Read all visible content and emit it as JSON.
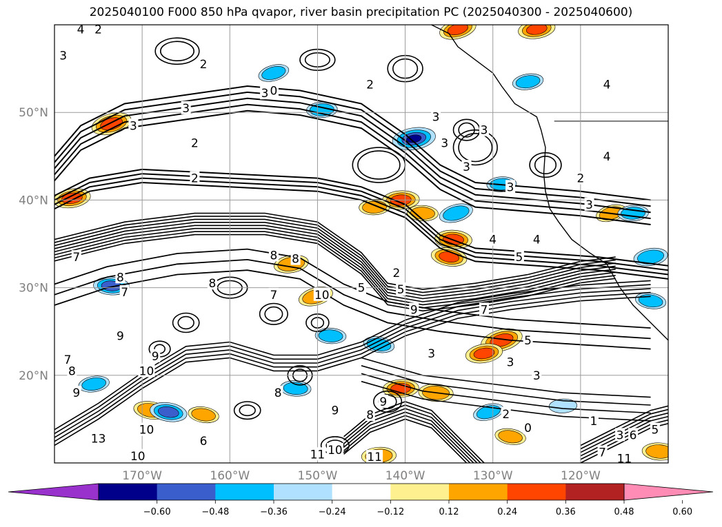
{
  "chart_data": {
    "type": "heatmap",
    "title": "2025040100 F000 850 hPa qvapor, river basin precipitation PC (2025040300 - 2025040600)",
    "map": {
      "lat_ticks": [
        "50°N",
        "40°N",
        "30°N",
        "20°N"
      ],
      "lat_values": [
        50,
        40,
        30,
        20
      ],
      "lon_ticks": [
        "170°W",
        "160°W",
        "150°W",
        "140°W",
        "130°W",
        "120°W"
      ],
      "lon_values": [
        -170,
        -160,
        -150,
        -140,
        -130,
        -120
      ],
      "lon_range": [
        -180,
        -110
      ],
      "lat_range": [
        10,
        60
      ],
      "grid": true,
      "contour_labels": [
        {
          "text": "4",
          "lon": -177,
          "lat": 59.5
        },
        {
          "text": "2",
          "lon": -175,
          "lat": 59.5
        },
        {
          "text": "3",
          "lon": -179,
          "lat": 56.5
        },
        {
          "text": "2",
          "lon": -163,
          "lat": 55.5
        },
        {
          "text": "3",
          "lon": -156,
          "lat": 52.2
        },
        {
          "text": "0",
          "lon": -155,
          "lat": 52.5
        },
        {
          "text": "3",
          "lon": -165,
          "lat": 50.5
        },
        {
          "text": "3",
          "lon": -171,
          "lat": 48.5
        },
        {
          "text": "2",
          "lon": -164,
          "lat": 46.5
        },
        {
          "text": "2",
          "lon": -164,
          "lat": 42.5
        },
        {
          "text": "2",
          "lon": -144,
          "lat": 53.2
        },
        {
          "text": "3",
          "lon": -136.5,
          "lat": 49.5
        },
        {
          "text": "3",
          "lon": -135.5,
          "lat": 46.5
        },
        {
          "text": "3",
          "lon": -131,
          "lat": 48
        },
        {
          "text": "3",
          "lon": -133,
          "lat": 43.8
        },
        {
          "text": "3",
          "lon": -128,
          "lat": 41.5
        },
        {
          "text": "2",
          "lon": -120,
          "lat": 42.5
        },
        {
          "text": "3",
          "lon": -119,
          "lat": 39.5
        },
        {
          "text": "4",
          "lon": -117,
          "lat": 53.2
        },
        {
          "text": "4",
          "lon": -117,
          "lat": 45
        },
        {
          "text": "4",
          "lon": -125,
          "lat": 35.5
        },
        {
          "text": "4",
          "lon": -130,
          "lat": 35.5
        },
        {
          "text": "5",
          "lon": -127,
          "lat": 33.5
        },
        {
          "text": "2",
          "lon": -141,
          "lat": 31.7
        },
        {
          "text": "5",
          "lon": -145,
          "lat": 30
        },
        {
          "text": "5",
          "lon": -140.5,
          "lat": 29.8
        },
        {
          "text": "7",
          "lon": -177.5,
          "lat": 33.5
        },
        {
          "text": "8",
          "lon": -172.5,
          "lat": 31.2
        },
        {
          "text": "7",
          "lon": -172,
          "lat": 29.5
        },
        {
          "text": "8",
          "lon": -162,
          "lat": 30.5
        },
        {
          "text": "8",
          "lon": -155,
          "lat": 33.7
        },
        {
          "text": "8",
          "lon": -152.5,
          "lat": 33.3
        },
        {
          "text": "7",
          "lon": -155,
          "lat": 29.2
        },
        {
          "text": "10",
          "lon": -149.5,
          "lat": 29.2
        },
        {
          "text": "9",
          "lon": -139,
          "lat": 27.5
        },
        {
          "text": "7",
          "lon": -131,
          "lat": 27.5
        },
        {
          "text": "9",
          "lon": -172.5,
          "lat": 24.5
        },
        {
          "text": "9",
          "lon": -168.5,
          "lat": 22.2
        },
        {
          "text": "10",
          "lon": -169.5,
          "lat": 20.5
        },
        {
          "text": "8",
          "lon": -178,
          "lat": 20.5
        },
        {
          "text": "9",
          "lon": -177.5,
          "lat": 18
        },
        {
          "text": "8",
          "lon": -154.5,
          "lat": 18
        },
        {
          "text": "7",
          "lon": -178.5,
          "lat": 21.8
        },
        {
          "text": "3",
          "lon": -137,
          "lat": 22.5
        },
        {
          "text": "5",
          "lon": -126,
          "lat": 24
        },
        {
          "text": "3",
          "lon": -125,
          "lat": 20
        },
        {
          "text": "3",
          "lon": -128,
          "lat": 21.5
        },
        {
          "text": "9",
          "lon": -142.5,
          "lat": 17
        },
        {
          "text": "9",
          "lon": -148,
          "lat": 16
        },
        {
          "text": "8",
          "lon": -144,
          "lat": 15.5
        },
        {
          "text": "10",
          "lon": -169.5,
          "lat": 13.8
        },
        {
          "text": "6",
          "lon": -163,
          "lat": 12.5
        },
        {
          "text": "10",
          "lon": -170.5,
          "lat": 10.8
        },
        {
          "text": "13",
          "lon": -175,
          "lat": 12.8
        },
        {
          "text": "11",
          "lon": -150,
          "lat": 11
        },
        {
          "text": "10",
          "lon": -148,
          "lat": 11.5
        },
        {
          "text": "11",
          "lon": -143.5,
          "lat": 10.7
        },
        {
          "text": "2",
          "lon": -128.5,
          "lat": 15.6
        },
        {
          "text": "0",
          "lon": -126,
          "lat": 14
        },
        {
          "text": "1",
          "lon": -118.5,
          "lat": 14.8
        },
        {
          "text": "3",
          "lon": -115.5,
          "lat": 13.2
        },
        {
          "text": "6",
          "lon": -114,
          "lat": 13.2
        },
        {
          "text": "7",
          "lon": -117.5,
          "lat": 11.2
        },
        {
          "text": "5",
          "lon": -111.5,
          "lat": 13.8
        },
        {
          "text": "11",
          "lon": -115,
          "lat": 10.5
        }
      ]
    },
    "colorbar": {
      "ticks": [
        "−0.60",
        "−0.48",
        "−0.36",
        "−0.24",
        "−0.12",
        "0.12",
        "0.24",
        "0.36",
        "0.48",
        "0.60"
      ],
      "levels": [
        -0.6,
        -0.48,
        -0.36,
        -0.24,
        -0.12,
        0.12,
        0.24,
        0.36,
        0.48,
        0.6
      ],
      "colors": [
        "#9932cc",
        "#00008b",
        "#3a5fcd",
        "#00bfff",
        "#b0e2ff",
        "#ffffff",
        "#fff08f",
        "#ffa500",
        "#ff4500",
        "#b22222",
        "#ff8cb4"
      ],
      "extend": "both"
    },
    "precip_blobs": [
      {
        "lon": -173.5,
        "lat": 48.7,
        "v": 0.45
      },
      {
        "lon": -178,
        "lat": 40.2,
        "v": 0.4
      },
      {
        "lon": -140.5,
        "lat": 40,
        "v": 0.4
      },
      {
        "lon": -134.5,
        "lat": 35.5,
        "v": 0.4
      },
      {
        "lon": -135,
        "lat": 33.5,
        "v": 0.38
      },
      {
        "lon": -129,
        "lat": 24,
        "v": 0.48
      },
      {
        "lon": -131,
        "lat": 22.5,
        "v": 0.4
      },
      {
        "lon": -140.5,
        "lat": 18.5,
        "v": 0.38
      },
      {
        "lon": -136.5,
        "lat": 18,
        "v": 0.36
      },
      {
        "lon": -169,
        "lat": 16,
        "v": 0.36
      },
      {
        "lon": -150.2,
        "lat": 29,
        "v": 0.36
      },
      {
        "lon": -153,
        "lat": 32.7,
        "v": 0.36
      },
      {
        "lon": -143,
        "lat": 10.8,
        "v": 0.36
      },
      {
        "lon": -111,
        "lat": 11.3,
        "v": 0.36
      },
      {
        "lon": -163,
        "lat": 15.5,
        "v": 0.3
      },
      {
        "lon": -134,
        "lat": 59.5,
        "v": 0.4
      },
      {
        "lon": -125,
        "lat": 59.5,
        "v": 0.4
      },
      {
        "lon": -143.5,
        "lat": 39.2,
        "v": 0.3
      },
      {
        "lon": -138,
        "lat": 38.5,
        "v": 0.3
      },
      {
        "lon": -128,
        "lat": 13,
        "v": 0.3
      },
      {
        "lon": -116.5,
        "lat": 38.5,
        "v": 0.3
      },
      {
        "lon": -139,
        "lat": 47,
        "v": -0.5
      },
      {
        "lon": -149.5,
        "lat": 50.3,
        "v": -0.3
      },
      {
        "lon": -173.5,
        "lat": 30.2,
        "v": -0.38
      },
      {
        "lon": -167,
        "lat": 15.8,
        "v": -0.4
      },
      {
        "lon": -134.2,
        "lat": 38.5,
        "v": -0.35
      },
      {
        "lon": -112,
        "lat": 33.5,
        "v": -0.35
      },
      {
        "lon": -114,
        "lat": 38.5,
        "v": -0.3
      },
      {
        "lon": -152.5,
        "lat": 18.5,
        "v": -0.3
      },
      {
        "lon": -143,
        "lat": 23.5,
        "v": -0.3
      },
      {
        "lon": -130.5,
        "lat": 15.8,
        "v": -0.3
      },
      {
        "lon": -175.5,
        "lat": 19,
        "v": -0.3
      },
      {
        "lon": -122,
        "lat": 16.5,
        "v": -0.25
      },
      {
        "lon": -148.5,
        "lat": 24.5,
        "v": -0.3
      },
      {
        "lon": -112,
        "lat": 28.5,
        "v": -0.3
      },
      {
        "lon": -155,
        "lat": 54.5,
        "v": -0.3
      },
      {
        "lon": -126,
        "lat": 53.5,
        "v": -0.3
      },
      {
        "lon": -129,
        "lat": 41.8,
        "v": -0.28
      }
    ]
  }
}
